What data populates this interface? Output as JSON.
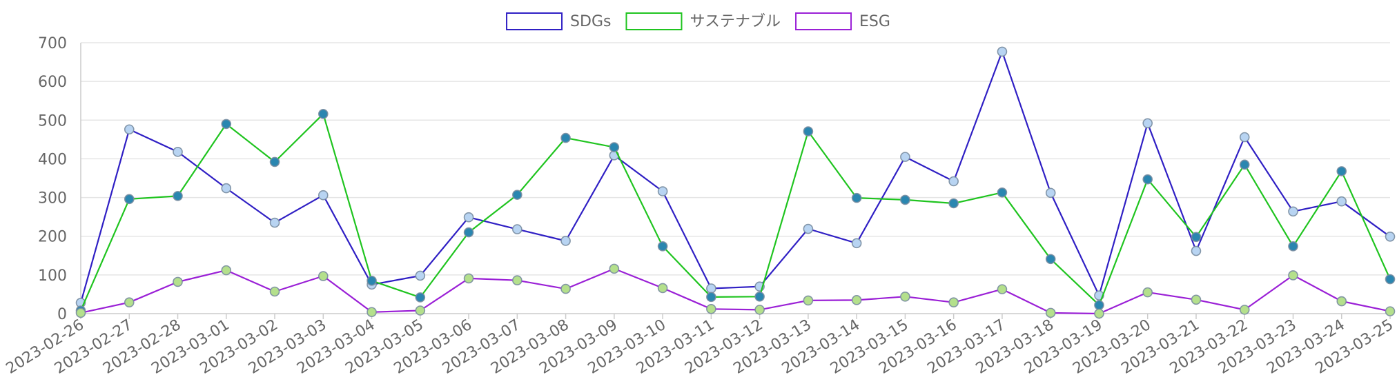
{
  "chart_data": {
    "type": "line",
    "title": "",
    "xlabel": "",
    "ylabel": "",
    "ylim": [
      0,
      700
    ],
    "yticks": [
      0,
      100,
      200,
      300,
      400,
      500,
      600,
      700
    ],
    "grid": true,
    "legend_position": "top",
    "categories": [
      "2023-02-26",
      "2023-02-27",
      "2023-02-28",
      "2023-03-01",
      "2023-03-02",
      "2023-03-03",
      "2023-03-04",
      "2023-03-05",
      "2023-03-06",
      "2023-03-07",
      "2023-03-08",
      "2023-03-09",
      "2023-03-10",
      "2023-03-11",
      "2023-03-12",
      "2023-03-13",
      "2023-03-14",
      "2023-03-15",
      "2023-03-16",
      "2023-03-17",
      "2023-03-18",
      "2023-03-19",
      "2023-03-20",
      "2023-03-21",
      "2023-03-22",
      "2023-03-23",
      "2023-03-24",
      "2023-03-25"
    ],
    "series": [
      {
        "name": "SDGs",
        "color": "#2f1fc4",
        "point_color": "#b8d4f2",
        "values": [
          28,
          476,
          418,
          324,
          235,
          306,
          75,
          98,
          249,
          218,
          188,
          409,
          316,
          65,
          70,
          219,
          182,
          405,
          342,
          677,
          312,
          47,
          492,
          162,
          456,
          264,
          290,
          199
        ]
      },
      {
        "name": "サステナブル",
        "color": "#1fc41f",
        "point_color": "#2a86b0",
        "values": [
          8,
          296,
          304,
          490,
          392,
          516,
          85,
          42,
          210,
          307,
          454,
          430,
          174,
          43,
          44,
          471,
          299,
          294,
          285,
          313,
          141,
          22,
          347,
          198,
          385,
          174,
          368,
          89
        ]
      },
      {
        "name": "ESG",
        "color": "#9a1fd6",
        "point_color": "#b4e08c",
        "values": [
          2,
          29,
          82,
          112,
          57,
          97,
          4,
          8,
          91,
          86,
          64,
          116,
          66,
          12,
          10,
          34,
          35,
          44,
          29,
          63,
          2,
          0,
          55,
          36,
          10,
          99,
          32,
          6
        ]
      }
    ]
  }
}
